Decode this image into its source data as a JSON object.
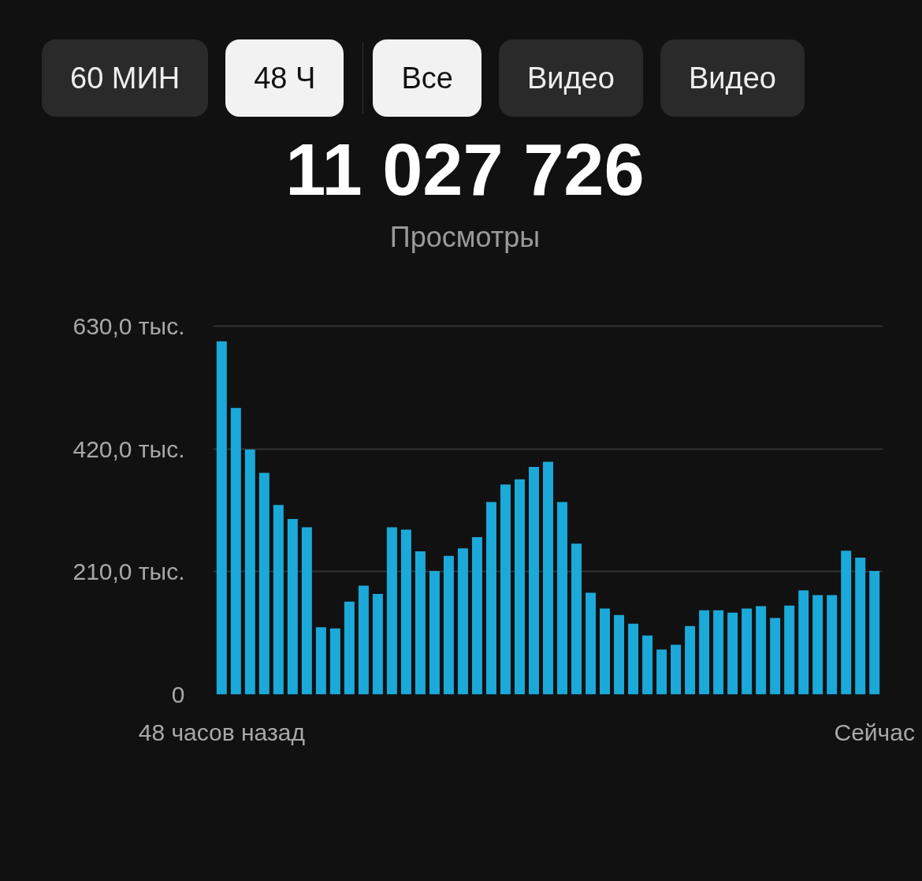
{
  "chart_data": {
    "type": "bar",
    "title": "11 027 726",
    "subtitle": "Просмотры",
    "annotations": [
      "60 МИН",
      "48 Ч",
      "Все",
      "Видео",
      "Видео"
    ],
    "categories": [
      "48 часов назад",
      null,
      null,
      null,
      null,
      null,
      null,
      null,
      null,
      null,
      null,
      null,
      null,
      null,
      null,
      null,
      null,
      null,
      null,
      null,
      null,
      null,
      null,
      null,
      null,
      null,
      null,
      null,
      null,
      null,
      null,
      null,
      null,
      null,
      null,
      null,
      null,
      null,
      null,
      null,
      null,
      null,
      null,
      null,
      null,
      null,
      "Сейчас"
    ],
    "values": [
      604,
      490,
      419,
      379,
      324,
      300,
      286,
      115,
      113,
      159,
      186,
      172,
      286,
      282,
      245,
      211,
      237,
      250,
      269,
      329,
      359,
      368,
      389,
      398,
      329,
      258,
      174,
      147,
      136,
      121,
      101,
      77,
      85,
      117,
      144,
      144,
      140,
      147,
      151,
      131,
      152,
      178,
      170,
      170,
      246,
      234,
      211
    ],
    "color": "#1ba9d9",
    "ylim": [
      0,
      634
    ],
    "yticks": [
      0,
      {
        "value": 210,
        "label": "210,0 тыс."
      },
      {
        "value": 420,
        "label": "420,0 тыс."
      },
      {
        "value": 630,
        "label": "630,0 тыс."
      }
    ],
    "grid": "y"
  }
}
